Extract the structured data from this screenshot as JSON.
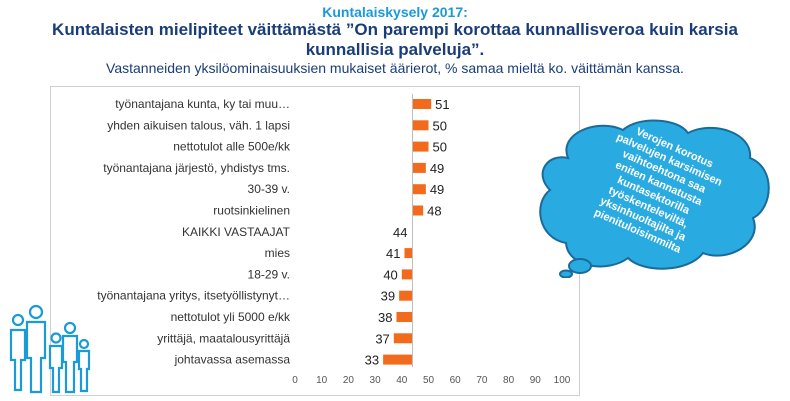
{
  "header": {
    "kicker": "Kuntalaiskysely 2017:",
    "title_line1": "Kuntalaisten mielipiteet väittämästä ”On parempi korottaa kunnallisveroa kuin karsia",
    "title_line2": "kunnallisia palveluja”.",
    "subtitle": "Vastanneiden yksilöominaisuuksien mukaiset äärierot, % samaa mieltä ko. väittämän kanssa."
  },
  "bubble": {
    "lines": [
      "Verojen korotus",
      "palvelujen karsimisen",
      "vaihtoehtona saa",
      "eniten kannatusta",
      "kuntasektorilla",
      "työskenteleviltä,",
      "yksinhuoltajilta ja",
      "pienituloisimmilta"
    ]
  },
  "colors": {
    "bar": "#f26a1b",
    "title": "#1a3d7a",
    "kicker": "#1a9ad6",
    "bubble_fill": "#29abe2",
    "bubble_stroke": "#1a6a9a"
  },
  "icons": [
    "people-group-icon"
  ],
  "chart_data": {
    "type": "bar",
    "orientation": "horizontal",
    "categories": [
      "työnantajana kunta, ky tai muu…",
      "yhden aikuisen talous, väh. 1 lapsi",
      "nettotulot alle 500e/kk",
      "työnantajana järjestö, yhdistys tms.",
      "30-39 v.",
      "ruotsinkielinen",
      "KAIKKI VASTAAJAT",
      "mies",
      "18-29 v.",
      "työnantajana yritys, itsetyöllistynyt…",
      "nettotulot yli 5000 e/kk",
      "yrittäjä, maatalousyrittäjä",
      "johtavassa asemassa"
    ],
    "values": [
      51,
      50,
      50,
      49,
      49,
      48,
      44,
      41,
      40,
      39,
      38,
      37,
      33
    ],
    "baseline": 44,
    "xlim": [
      0,
      100
    ],
    "xticks": [
      "0",
      "10",
      "20",
      "30",
      "40",
      "50",
      "60",
      "70",
      "80",
      "90",
      "100"
    ],
    "grid": false
  }
}
